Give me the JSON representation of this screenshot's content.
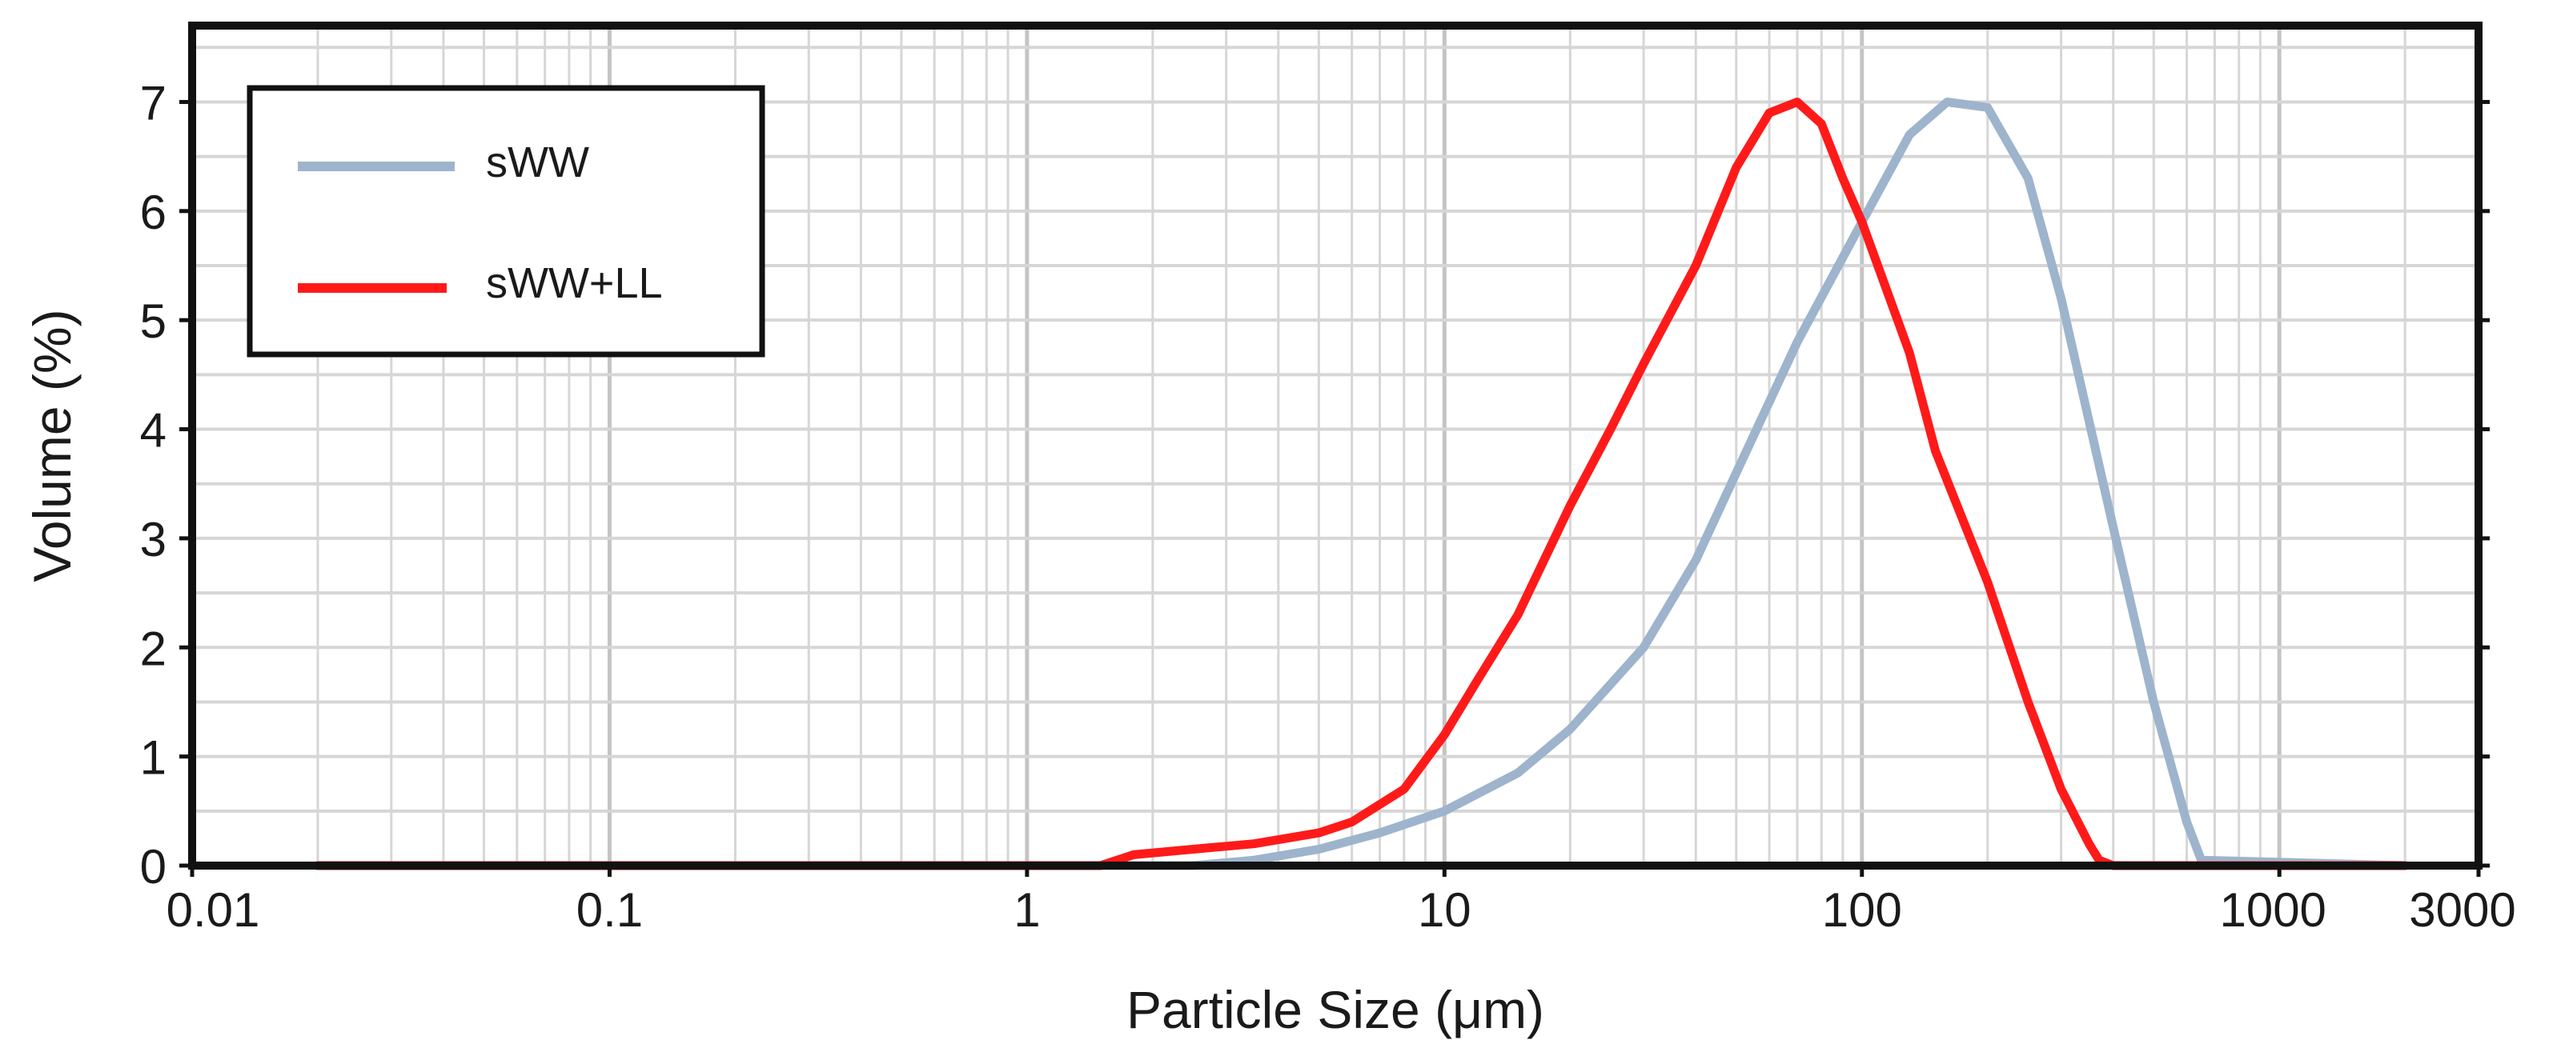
{
  "chart_data": {
    "type": "line",
    "xlabel": "Particle Size (μm)",
    "ylabel": "Volume (%)",
    "xscale": "log",
    "xlim": [
      0.01,
      3000
    ],
    "ylim": [
      0,
      7.7
    ],
    "x_ticks": [
      0.01,
      0.1,
      1,
      10,
      100,
      1000,
      3000
    ],
    "x_tick_labels": [
      "0.01",
      "0.1",
      "1",
      "10",
      "100",
      "1000",
      "3000"
    ],
    "y_ticks": [
      0,
      1,
      2,
      3,
      4,
      5,
      6,
      7
    ],
    "y_tick_labels": [
      "0",
      "1",
      "2",
      "3",
      "4",
      "5",
      "6",
      "7"
    ],
    "grid": true,
    "legend_position": "top-left",
    "series": [
      {
        "name": "sWW",
        "color": "#9db4cc",
        "points": [
          [
            0.02,
            0
          ],
          [
            2.5,
            0
          ],
          [
            3.5,
            0.05
          ],
          [
            5,
            0.15
          ],
          [
            7,
            0.3
          ],
          [
            10,
            0.5
          ],
          [
            15,
            0.85
          ],
          [
            20,
            1.25
          ],
          [
            30,
            2.0
          ],
          [
            40,
            2.8
          ],
          [
            50,
            3.6
          ],
          [
            70,
            4.8
          ],
          [
            100,
            5.9
          ],
          [
            130,
            6.7
          ],
          [
            160,
            7.0
          ],
          [
            200,
            6.95
          ],
          [
            250,
            6.3
          ],
          [
            300,
            5.2
          ],
          [
            400,
            3.1
          ],
          [
            500,
            1.5
          ],
          [
            600,
            0.4
          ],
          [
            650,
            0.05
          ],
          [
            2000,
            0
          ]
        ]
      },
      {
        "name": "sWW+LL",
        "color": "#ff1a1a",
        "points": [
          [
            0.02,
            0
          ],
          [
            1.5,
            0
          ],
          [
            1.8,
            0.1
          ],
          [
            2.5,
            0.15
          ],
          [
            3.5,
            0.2
          ],
          [
            5,
            0.3
          ],
          [
            6,
            0.4
          ],
          [
            8,
            0.7
          ],
          [
            10,
            1.2
          ],
          [
            12,
            1.7
          ],
          [
            15,
            2.3
          ],
          [
            20,
            3.3
          ],
          [
            25,
            4.0
          ],
          [
            30,
            4.6
          ],
          [
            40,
            5.5
          ],
          [
            50,
            6.4
          ],
          [
            60,
            6.9
          ],
          [
            70,
            7.0
          ],
          [
            80,
            6.8
          ],
          [
            90,
            6.3
          ],
          [
            100,
            5.9
          ],
          [
            130,
            4.7
          ],
          [
            150,
            3.8
          ],
          [
            200,
            2.6
          ],
          [
            250,
            1.5
          ],
          [
            300,
            0.7
          ],
          [
            350,
            0.2
          ],
          [
            370,
            0.05
          ],
          [
            400,
            0
          ],
          [
            2000,
            0
          ]
        ]
      }
    ]
  }
}
